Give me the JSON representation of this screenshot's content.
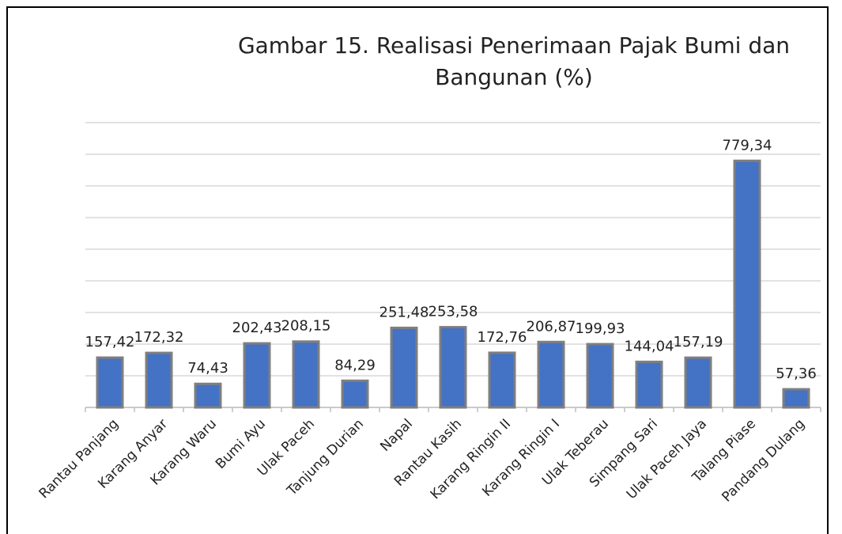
{
  "chart_data": {
    "type": "bar",
    "title": "Gambar 15. Realisasi Penerimaan Pajak Bumi dan Bangunan (%)",
    "categories": [
      "Rantau Panjang",
      "Karang Anyar",
      "Karang Waru",
      "Bumi Ayu",
      "Ulak Paceh",
      "Tanjung Durian",
      "Napal",
      "Rantau Kasih",
      "Karang Ringin II",
      "Karang Ringin I",
      "Ulak Teberau",
      "Simpang Sari",
      "Ulak Paceh Jaya",
      "Talang Piase",
      "Pandang Dulang"
    ],
    "values": [
      157.42,
      172.32,
      74.43,
      202.43,
      208.15,
      84.29,
      251.48,
      253.58,
      172.76,
      206.87,
      199.93,
      144.04,
      157.19,
      779.34,
      57.36
    ],
    "value_labels": [
      "157,42",
      "172,32",
      "74,43",
      "202,43",
      "208,15",
      "84,29",
      "251,48",
      "253,58",
      "172,76",
      "206,87",
      "199,93",
      "144,04",
      "157,19",
      "779,34",
      "57,36"
    ],
    "color": "#4472c4",
    "ylim": [
      0,
      900
    ],
    "yticks": [
      0,
      100,
      200,
      300,
      400,
      500,
      600,
      700,
      800,
      900
    ],
    "grid": true
  }
}
